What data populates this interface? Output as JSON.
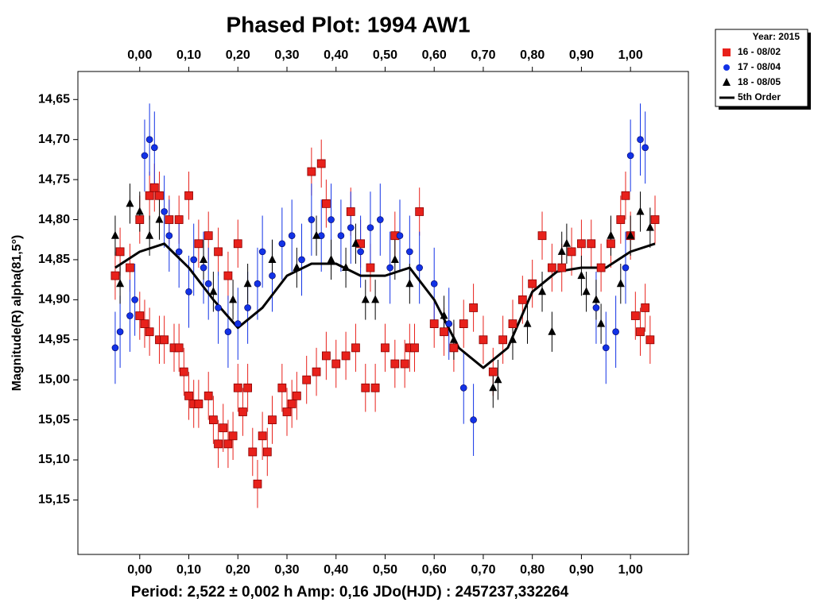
{
  "chart_data": {
    "type": "scatter",
    "title": "Phased Plot: 1994 AW1",
    "y_label": "Magnitude(R) alpha(81,5°)",
    "footer": "Period: 2,522 ± 0,002 h      Amp: 0,16      JDo(HJD) : 2457237,332264",
    "legend_title": "Year: 2015",
    "xlim": [
      -0.126,
      1.118
    ],
    "ylim": [
      15.218,
      14.615
    ],
    "y_inverted": true,
    "xticks": [
      {
        "value": 0,
        "label": "0,00"
      },
      {
        "value": 0.1,
        "label": "0,10"
      },
      {
        "value": 0.2,
        "label": "0,20"
      },
      {
        "value": 0.3,
        "label": "0,30"
      },
      {
        "value": 0.4,
        "label": "0,40"
      },
      {
        "value": 0.5,
        "label": "0,50"
      },
      {
        "value": 0.6,
        "label": "0,60"
      },
      {
        "value": 0.7,
        "label": "0,70"
      },
      {
        "value": 0.8,
        "label": "0,80"
      },
      {
        "value": 0.9,
        "label": "0,90"
      },
      {
        "value": 1,
        "label": "1,00"
      }
    ],
    "yticks": [
      {
        "value": 14.65,
        "label": "14,65"
      },
      {
        "value": 14.7,
        "label": "14,70"
      },
      {
        "value": 14.75,
        "label": "14,75"
      },
      {
        "value": 14.8,
        "label": "14,80"
      },
      {
        "value": 14.85,
        "label": "14,85"
      },
      {
        "value": 14.9,
        "label": "14,90"
      },
      {
        "value": 14.95,
        "label": "14,95"
      },
      {
        "value": 15,
        "label": "15,00"
      },
      {
        "value": 15.05,
        "label": "15,05"
      },
      {
        "value": 15.1,
        "label": "15,10"
      },
      {
        "value": 15.15,
        "label": "15,15"
      }
    ],
    "series": [
      {
        "name": "16 - 08/02",
        "color": "#e8211b",
        "marker": "square",
        "error": 0.03,
        "x": [
          -0.05,
          -0.04,
          -0.02,
          0,
          0.01,
          0.02,
          0.04,
          0.05,
          0.07,
          0.08,
          0.09,
          0.1,
          0.11,
          0.12,
          0.14,
          0.15,
          0.16,
          0.17,
          0.18,
          0.19,
          0.2,
          0.21,
          0.22,
          0.23,
          0.24,
          0.25,
          0.26,
          0.27,
          0.29,
          0.3,
          0.31,
          0.32,
          0.34,
          0.36,
          0.38,
          0.4,
          0.42,
          0.44,
          0.46,
          0.48,
          0.5,
          0.52,
          0.54,
          0.55,
          0.56,
          0,
          0.02,
          0.03,
          0.04,
          0.06,
          0.08,
          0.1,
          0.12,
          0.14,
          0.16,
          0.18,
          0.2,
          0.35,
          0.37,
          0.38,
          0.43,
          0.45,
          0.47,
          0.52,
          0.57,
          0.6,
          0.62,
          0.64,
          0.66,
          0.68,
          0.7,
          0.72,
          0.74,
          0.76,
          0.78,
          0.8,
          0.82,
          0.84,
          0.86,
          0.88,
          0.9,
          0.92,
          0.94,
          0.96,
          0.98,
          0.99,
          1,
          1.01,
          1.02,
          1.03,
          1.04,
          1.05
        ],
        "values": [
          14.87,
          14.84,
          14.86,
          14.92,
          14.93,
          14.94,
          14.95,
          14.95,
          14.96,
          14.96,
          14.99,
          15.02,
          15.03,
          15.03,
          15.02,
          15.05,
          15.08,
          15.06,
          15.08,
          15.07,
          15.01,
          15.04,
          15.01,
          15.09,
          15.13,
          15.07,
          15.09,
          15.05,
          15.01,
          15.04,
          15.03,
          15.02,
          15,
          14.99,
          14.97,
          14.98,
          14.97,
          14.96,
          15.01,
          15.01,
          14.96,
          14.98,
          14.98,
          14.96,
          14.96,
          14.8,
          14.77,
          14.76,
          14.77,
          14.8,
          14.8,
          14.77,
          14.83,
          14.82,
          14.84,
          14.87,
          14.83,
          14.74,
          14.73,
          14.78,
          14.79,
          14.83,
          14.86,
          14.82,
          14.79,
          14.93,
          14.94,
          14.96,
          14.93,
          14.91,
          14.95,
          14.99,
          14.95,
          14.93,
          14.9,
          14.88,
          14.82,
          14.86,
          14.86,
          14.84,
          14.83,
          14.83,
          14.86,
          14.83,
          14.8,
          14.77,
          14.82,
          14.92,
          14.94,
          14.91,
          14.95,
          14.8
        ]
      },
      {
        "name": "17 - 08/04",
        "color": "#1232e6",
        "marker": "circle",
        "error": 0.045,
        "x": [
          -0.05,
          -0.04,
          -0.02,
          -0.01,
          0.01,
          0.02,
          0.03,
          0.05,
          0.06,
          0.08,
          0.1,
          0.11,
          0.13,
          0.14,
          0.16,
          0.18,
          0.2,
          0.22,
          0.24,
          0.25,
          0.27,
          0.29,
          0.31,
          0.33,
          0.35,
          0.37,
          0.39,
          0.41,
          0.43,
          0.45,
          0.47,
          0.49,
          0.51,
          0.53,
          0.55,
          0.57,
          0.6,
          0.63,
          0.66,
          0.68,
          0.93,
          0.95,
          0.97,
          0.99,
          1,
          1.02,
          1.03
        ],
        "values": [
          14.96,
          14.94,
          14.92,
          14.9,
          14.72,
          14.7,
          14.71,
          14.79,
          14.82,
          14.84,
          14.89,
          14.85,
          14.86,
          14.88,
          14.91,
          14.94,
          14.93,
          14.91,
          14.88,
          14.84,
          14.87,
          14.83,
          14.82,
          14.85,
          14.8,
          14.82,
          14.8,
          14.82,
          14.81,
          14.84,
          14.81,
          14.8,
          14.86,
          14.82,
          14.84,
          14.86,
          14.88,
          14.93,
          15.01,
          15.05,
          14.91,
          14.96,
          14.94,
          14.86,
          14.72,
          14.7,
          14.71
        ]
      },
      {
        "name": "18 - 08/05",
        "color": "#000000",
        "marker": "triangle",
        "error": 0.025,
        "x": [
          -0.05,
          -0.04,
          -0.02,
          0,
          0.02,
          0.04,
          0.13,
          0.15,
          0.19,
          0.22,
          0.27,
          0.32,
          0.36,
          0.39,
          0.42,
          0.44,
          0.46,
          0.48,
          0.52,
          0.55,
          0.62,
          0.64,
          0.72,
          0.73,
          0.76,
          0.79,
          0.82,
          0.84,
          0.86,
          0.87,
          0.9,
          0.91,
          0.93,
          0.94,
          0.96,
          0.98,
          1,
          1.02,
          1.04
        ],
        "values": [
          14.82,
          14.88,
          14.78,
          14.79,
          14.82,
          14.8,
          14.85,
          14.89,
          14.9,
          14.88,
          14.85,
          14.86,
          14.82,
          14.85,
          14.86,
          14.83,
          14.9,
          14.9,
          14.85,
          14.88,
          14.92,
          14.95,
          15.01,
          15,
          14.95,
          14.93,
          14.89,
          14.94,
          14.84,
          14.83,
          14.87,
          14.89,
          14.9,
          14.93,
          14.82,
          14.88,
          14.82,
          14.79,
          14.81
        ]
      },
      {
        "name": "5th Order",
        "color": "#000000",
        "marker": "line",
        "x": [
          -0.05,
          0,
          0.05,
          0.1,
          0.15,
          0.2,
          0.25,
          0.3,
          0.35,
          0.4,
          0.45,
          0.5,
          0.55,
          0.6,
          0.65,
          0.7,
          0.75,
          0.8,
          0.85,
          0.9,
          0.95,
          1,
          1.05
        ],
        "values": [
          14.86,
          14.84,
          14.83,
          14.86,
          14.9,
          14.935,
          14.91,
          14.87,
          14.855,
          14.855,
          14.87,
          14.87,
          14.86,
          14.9,
          14.96,
          14.985,
          14.96,
          14.89,
          14.865,
          14.86,
          14.86,
          14.84,
          14.83
        ]
      }
    ]
  }
}
